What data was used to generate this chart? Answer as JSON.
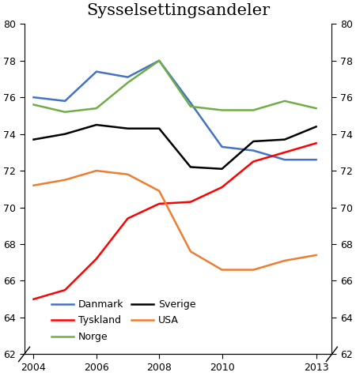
{
  "title": "Sysselsettingsandeler",
  "years": [
    2004,
    2005,
    2006,
    2007,
    2008,
    2009,
    2010,
    2011,
    2012,
    2013
  ],
  "danmark": [
    76.0,
    75.8,
    77.4,
    77.1,
    78.0,
    75.7,
    73.3,
    73.1,
    72.6,
    72.6
  ],
  "tyskland": [
    65.0,
    65.5,
    67.2,
    69.4,
    70.2,
    70.3,
    71.1,
    72.5,
    73.0,
    73.5
  ],
  "norge": [
    75.6,
    75.2,
    75.4,
    76.8,
    78.0,
    75.5,
    75.3,
    75.3,
    75.8,
    75.4
  ],
  "sverige": [
    73.7,
    74.0,
    74.5,
    74.3,
    74.3,
    72.2,
    72.1,
    73.6,
    73.7,
    74.4
  ],
  "usa": [
    71.2,
    71.5,
    72.0,
    71.8,
    70.9,
    67.6,
    66.6,
    66.6,
    67.1,
    67.4
  ],
  "colors": {
    "danmark": "#4472C4",
    "tyskland": "#FF0000",
    "norge": "#70AD47",
    "sverige": "#000000",
    "usa": "#ED7D31"
  },
  "ylim": [
    62,
    80
  ],
  "yticks": [
    62,
    64,
    66,
    68,
    70,
    72,
    74,
    76,
    78,
    80
  ],
  "xticks": [
    2004,
    2006,
    2008,
    2010,
    2013
  ],
  "xlim": [
    2003.7,
    2013.5
  ],
  "legend_order": [
    "danmark",
    "tyskland",
    "norge",
    "sverige",
    "usa"
  ],
  "legend_labels": {
    "danmark": "Danmark",
    "tyskland": "Tyskland",
    "norge": "Norge",
    "sverige": "Sverige",
    "usa": "USA"
  },
  "title_fontsize": 15,
  "tick_fontsize": 9,
  "linewidth": 1.8
}
